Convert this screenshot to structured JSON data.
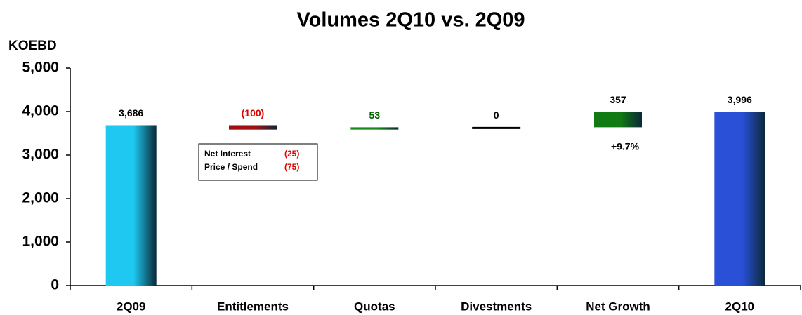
{
  "chart_data": {
    "type": "waterfall",
    "title": "Volumes 2Q10 vs. 2Q09",
    "ylabel": "KOEBD",
    "categories": [
      "2Q09",
      "Entitlements",
      "Quotas",
      "Divestments",
      "Net Growth",
      "2Q10"
    ],
    "values": [
      3686,
      -100,
      53,
      0,
      357,
      3996
    ],
    "value_labels": [
      "3,686",
      "(100)",
      "53",
      "0",
      "357",
      "3,996"
    ],
    "totals": [
      true,
      false,
      false,
      false,
      false,
      true
    ],
    "colors": [
      "#1ec8f0",
      "#a01010",
      "#1a8a1a",
      "#000000",
      "#127a12",
      "#2a50d8"
    ],
    "label_colors": [
      "#000000",
      "#e00000",
      "#006000",
      "#000000",
      "#000000",
      "#000000"
    ],
    "ylim": [
      0,
      5000
    ],
    "yticks": [
      0,
      {
        "value": 1000,
        "label": "1,000"
      },
      {
        "value": 2000,
        "label": "2,000"
      },
      {
        "value": 3000,
        "label": "3,000"
      },
      {
        "value": 4000,
        "label": "4,000"
      },
      {
        "value": 5000,
        "label": "5,000"
      }
    ],
    "breakdown": [
      {
        "name": "Net Interest",
        "value_label": "(25)"
      },
      {
        "name": "Price / Spend",
        "value_label": "(75)"
      }
    ],
    "annotation": "+9.7%"
  }
}
